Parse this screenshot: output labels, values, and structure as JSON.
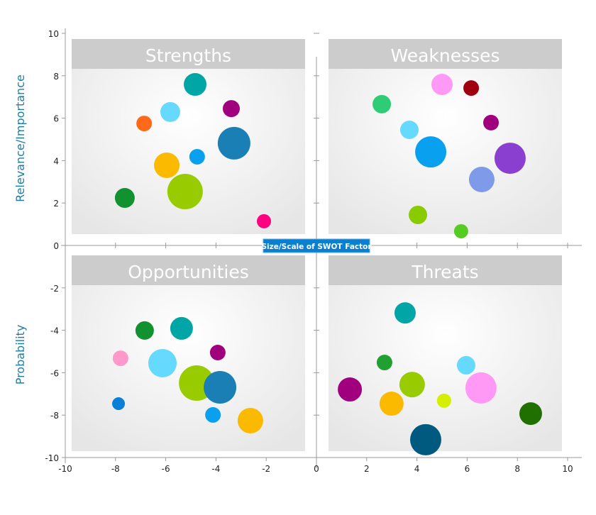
{
  "chart_data": {
    "type": "scatter",
    "subtype": "bubble",
    "title": "",
    "xlim": [
      -10,
      10
    ],
    "ylim": [
      -10,
      10
    ],
    "x_ticks": [
      -10,
      -8,
      -6,
      -4,
      -2,
      0,
      2,
      4,
      6,
      8,
      10
    ],
    "y_ticks": [
      10,
      8,
      6,
      4,
      2,
      0,
      -2,
      -4,
      -6,
      -8,
      -10
    ],
    "ylabel_top": "Relevance/Importance",
    "ylabel_bottom": "Probability",
    "size_legend": "Size/Scale of SWOT Factor",
    "quadrants": [
      {
        "name": "Strengths",
        "points": [
          {
            "x": -4.83,
            "y": 7.59,
            "size": 16,
            "color": "#00A6A6"
          },
          {
            "x": -3.39,
            "y": 6.45,
            "size": 12,
            "color": "#A0007E"
          },
          {
            "x": -5.82,
            "y": 6.29,
            "size": 14,
            "color": "#66D9FF"
          },
          {
            "x": -6.86,
            "y": 5.75,
            "size": 11,
            "color": "#FF6A1A"
          },
          {
            "x": -3.28,
            "y": 4.82,
            "size": 23,
            "color": "#1A7FB5"
          },
          {
            "x": -4.75,
            "y": 4.18,
            "size": 11,
            "color": "#0AA0F0"
          },
          {
            "x": -5.96,
            "y": 3.78,
            "size": 18,
            "color": "#FBBA00"
          },
          {
            "x": -5.23,
            "y": 2.54,
            "size": 25,
            "color": "#99CC00"
          },
          {
            "x": -7.63,
            "y": 2.24,
            "size": 14,
            "color": "#119130"
          },
          {
            "x": -2.09,
            "y": 1.14,
            "size": 10,
            "color": "#FF0080"
          }
        ]
      },
      {
        "name": "Weaknesses",
        "points": [
          {
            "x": 5.0,
            "y": 7.59,
            "size": 15,
            "color": "#FF99F5"
          },
          {
            "x": 6.16,
            "y": 7.42,
            "size": 11,
            "color": "#A00010"
          },
          {
            "x": 2.6,
            "y": 6.66,
            "size": 13,
            "color": "#2ECC77"
          },
          {
            "x": 6.95,
            "y": 5.79,
            "size": 11,
            "color": "#A0007E"
          },
          {
            "x": 3.7,
            "y": 5.45,
            "size": 13,
            "color": "#66D9FF"
          },
          {
            "x": 4.55,
            "y": 4.41,
            "size": 22,
            "color": "#0AA0F0"
          },
          {
            "x": 7.71,
            "y": 4.11,
            "size": 22,
            "color": "#8B3FD0"
          },
          {
            "x": 6.58,
            "y": 3.11,
            "size": 18,
            "color": "#7F9AE8"
          },
          {
            "x": 4.04,
            "y": 1.44,
            "size": 13,
            "color": "#88CC00"
          },
          {
            "x": 5.76,
            "y": 0.67,
            "size": 10,
            "color": "#55CC22"
          }
        ]
      },
      {
        "name": "Opportunities",
        "points": [
          {
            "x": -5.37,
            "y": -3.91,
            "size": 16,
            "color": "#00A6A6"
          },
          {
            "x": -6.84,
            "y": -4.01,
            "size": 13,
            "color": "#119130"
          },
          {
            "x": -3.93,
            "y": -5.05,
            "size": 11,
            "color": "#A0007E"
          },
          {
            "x": -7.8,
            "y": -5.32,
            "size": 11,
            "color": "#FF99CC"
          },
          {
            "x": -6.13,
            "y": -5.55,
            "size": 20,
            "color": "#66D9FF"
          },
          {
            "x": -4.77,
            "y": -6.49,
            "size": 25,
            "color": "#99CC00"
          },
          {
            "x": -3.84,
            "y": -6.69,
            "size": 23,
            "color": "#1A7FB5"
          },
          {
            "x": -7.88,
            "y": -7.46,
            "size": 9,
            "color": "#0A7FD8"
          },
          {
            "x": -4.12,
            "y": -7.99,
            "size": 11,
            "color": "#0AA0F0"
          },
          {
            "x": -2.63,
            "y": -8.26,
            "size": 18,
            "color": "#FBBA00"
          }
        ]
      },
      {
        "name": "Threats",
        "points": [
          {
            "x": 3.53,
            "y": -3.18,
            "size": 15,
            "color": "#00A6A6"
          },
          {
            "x": 2.71,
            "y": -5.52,
            "size": 11,
            "color": "#20A030"
          },
          {
            "x": 5.96,
            "y": -5.65,
            "size": 13,
            "color": "#66D9FF"
          },
          {
            "x": 3.81,
            "y": -6.56,
            "size": 18,
            "color": "#99CC00"
          },
          {
            "x": 6.55,
            "y": -6.72,
            "size": 22,
            "color": "#FF99F5"
          },
          {
            "x": 1.33,
            "y": -6.79,
            "size": 17,
            "color": "#A0007E"
          },
          {
            "x": 5.08,
            "y": -7.32,
            "size": 10,
            "color": "#D4F000"
          },
          {
            "x": 2.99,
            "y": -7.46,
            "size": 17,
            "color": "#FBBA00"
          },
          {
            "x": 8.53,
            "y": -7.93,
            "size": 16,
            "color": "#1F7000"
          },
          {
            "x": 4.35,
            "y": -9.16,
            "size": 22,
            "color": "#005A80"
          }
        ]
      }
    ]
  }
}
